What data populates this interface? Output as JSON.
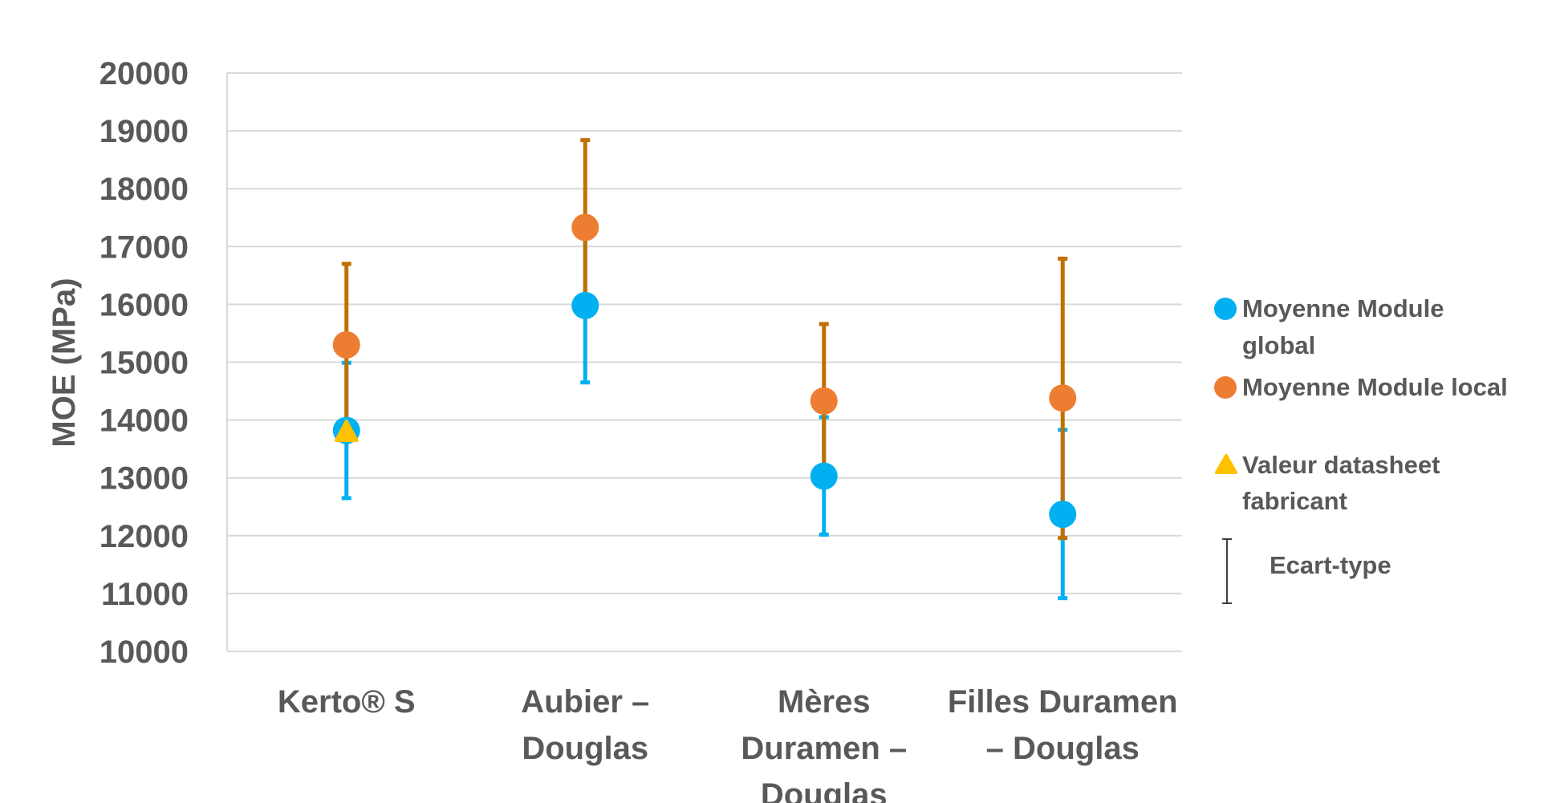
{
  "chart_data": {
    "type": "scatter",
    "title": "",
    "xlabel": "",
    "ylabel": "MOE (MPa)",
    "ylim": [
      10000,
      20000
    ],
    "yticks": [
      "20000",
      "19000",
      "18000",
      "17000",
      "16000",
      "15000",
      "14000",
      "13000",
      "12000",
      "11000",
      "10000"
    ],
    "categories": [
      [
        "Kerto® S"
      ],
      [
        "Aubier –",
        "Douglas"
      ],
      [
        "Mères",
        "Duramen –",
        "Douglas"
      ],
      [
        "Filles Duramen",
        "– Douglas"
      ]
    ],
    "series": [
      {
        "name": "Moyenne Module global",
        "marker": "circle",
        "color": "#00B0F0",
        "error_color": "#00B0F0",
        "values": [
          13820,
          15980,
          13030,
          12370
        ],
        "error_low": [
          12650,
          14650,
          12020,
          10920
        ],
        "error_high": [
          14990,
          17310,
          14050,
          13830
        ]
      },
      {
        "name": "Moyenne Module local",
        "marker": "circle",
        "color": "#ED7D31",
        "error_color": "#C07000",
        "values": [
          15300,
          17330,
          14330,
          14380
        ],
        "error_low": [
          13900,
          15820,
          13000,
          11960
        ],
        "error_high": [
          16700,
          18840,
          15660,
          16790
        ]
      },
      {
        "name": "Valeur datasheet fabricant",
        "marker": "triangle",
        "color": "#FFC000",
        "values": [
          13800,
          null,
          null,
          null
        ]
      }
    ],
    "legend": {
      "position": "right",
      "items": [
        {
          "lines": [
            "Moyenne Module",
            "global"
          ],
          "marker": "circle",
          "color": "#00B0F0"
        },
        {
          "lines": [
            "Moyenne Module local"
          ],
          "marker": "circle",
          "color": "#ED7D31"
        },
        {
          "lines": [
            "Valeur datasheet",
            "fabricant"
          ],
          "marker": "triangle",
          "color": "#FFC000"
        },
        {
          "lines": [
            "Ecart-type"
          ],
          "marker": "errorbar",
          "color": "#404040"
        }
      ]
    },
    "grid": true
  }
}
